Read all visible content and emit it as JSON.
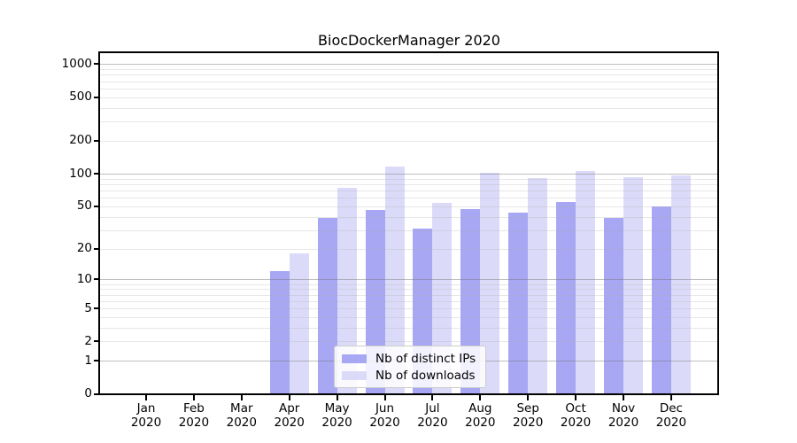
{
  "chart_data": {
    "type": "bar",
    "title": "BiocDockerManager 2020",
    "x_tick_months": [
      "Jan",
      "Feb",
      "Mar",
      "Apr",
      "May",
      "Jun",
      "Jul",
      "Aug",
      "Sep",
      "Oct",
      "Nov",
      "Dec"
    ],
    "x_tick_year": "2020",
    "categories": [
      "Jan 2020",
      "Feb 2020",
      "Mar 2020",
      "Apr 2020",
      "May 2020",
      "Jun 2020",
      "Jul 2020",
      "Aug 2020",
      "Sep 2020",
      "Oct 2020",
      "Nov 2020",
      "Dec 2020"
    ],
    "series": [
      {
        "name": "Nb of distinct IPs",
        "color": "#a7a7f3",
        "values": [
          0,
          0,
          0,
          12,
          39,
          46,
          31,
          47,
          44,
          55,
          39,
          50
        ]
      },
      {
        "name": "Nb of downloads",
        "color": "#dbdbf9",
        "values": [
          0,
          0,
          0,
          18,
          74,
          116,
          54,
          101,
          91,
          105,
          92,
          96
        ]
      }
    ],
    "y_ticks": [
      0,
      1,
      2,
      5,
      10,
      20,
      50,
      100,
      200,
      500,
      1000
    ],
    "y_scale": "pseudo-log (log10 of 1+x), 0 shown at baseline",
    "ylim": [
      0,
      1260
    ],
    "xlabel": "",
    "ylabel": "",
    "grid": "horizontal, minor + major (major at 1,10,100,1000), drawn over bars",
    "legend_position": "inside plot, lower center-left",
    "colors": {
      "bar_ips": "#a7a7f3",
      "bar_downloads": "#dbdbf9",
      "grid_major": "rgba(120,120,120,0.47)",
      "grid_minor": "rgba(175,175,175,0.30)",
      "spine": "#000000",
      "legend_border": "#cccccc",
      "legend_bg": "rgba(255,255,255,0.85)",
      "text": "#000000",
      "background": "#ffffff"
    }
  }
}
